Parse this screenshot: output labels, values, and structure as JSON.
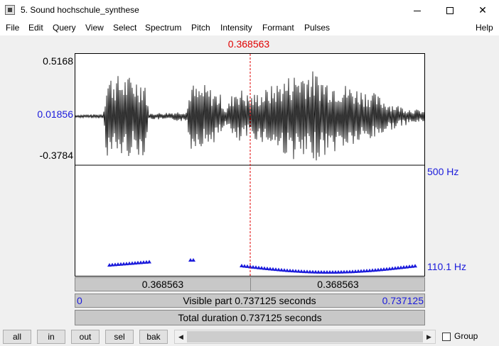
{
  "window": {
    "title": "5. Sound hochschule_synthese",
    "minimize_icon": "minimize-icon",
    "maximize_icon": "maximize-icon",
    "close_glyph": "✕"
  },
  "menu": [
    "File",
    "Edit",
    "Query",
    "View",
    "Select",
    "Spectrum",
    "Pitch",
    "Intensity",
    "Formant",
    "Pulses",
    "Help"
  ],
  "cursor": {
    "time": "0.368563",
    "position_fraction": 0.5,
    "color": "#e00000"
  },
  "waveform_axis": {
    "max": "0.5168",
    "mid": "0.01856",
    "min": "-0.3784"
  },
  "pitch_axis": {
    "top": "500 Hz",
    "bottom": "110.1 Hz"
  },
  "segments": {
    "left_time": "0.368563",
    "right_time": "0.368563",
    "visible_start": "0",
    "visible_label": "Visible part 0.737125 seconds",
    "visible_end": "0.737125",
    "total_label": "Total duration 0.737125 seconds"
  },
  "buttons": {
    "all": "all",
    "in": "in",
    "out": "out",
    "sel": "sel",
    "bak": "bak"
  },
  "scroll": {
    "left_arrow": "◀",
    "right_arrow": "▶"
  },
  "group": {
    "label": "Group",
    "checked": false
  },
  "colors": {
    "pitch": "#1a1adb",
    "cursor": "#e00000",
    "wave": "#000000"
  }
}
